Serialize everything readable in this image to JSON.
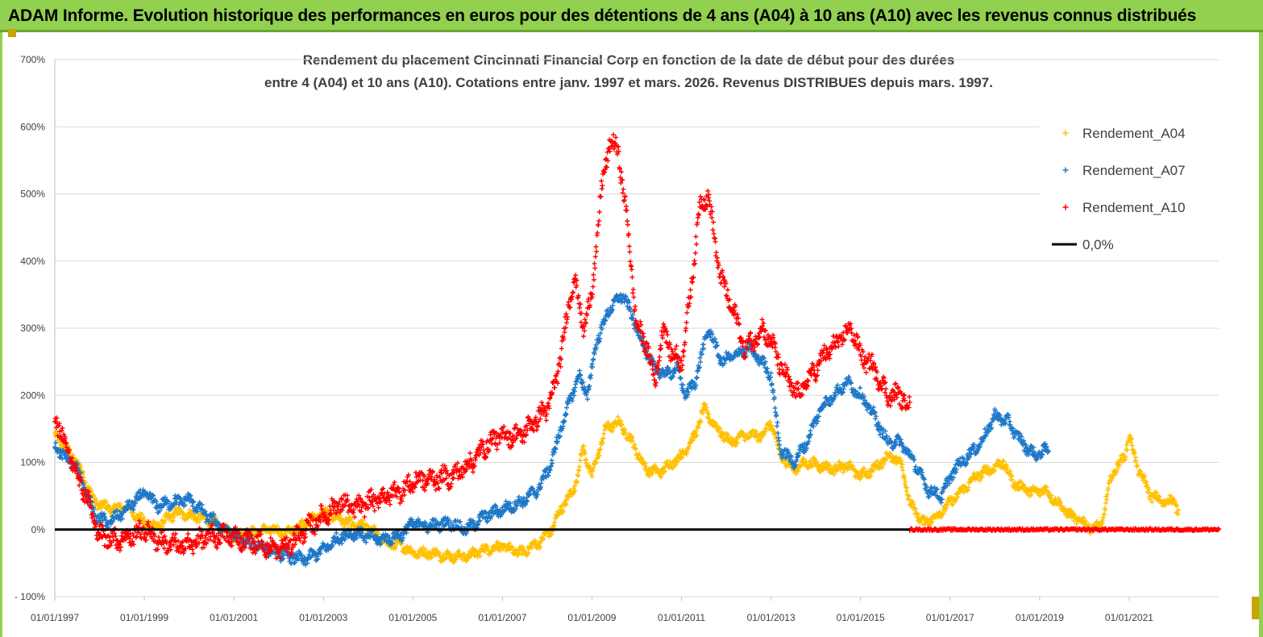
{
  "banner": {
    "title": "ADAM Informe. Evolution historique des performances en euros pour des détentions de 4 ans (A04) à 10 ans (A10) avec les revenus connus distribués"
  },
  "chart_data": {
    "type": "scatter",
    "title_lines": [
      "Rendement du placement Cincinnati Financial Corp en fonction de la date de début pour des durées",
      "entre 4 (A04) et 10 ans (A10). Cotations entre janv. 1997 et mars. 2026. Revenus DISTRIBUES depuis mars. 1997."
    ],
    "xlabel": "",
    "ylabel": "",
    "x_range": [
      "1997-01-01",
      "2023-01-01"
    ],
    "ylim": [
      -100,
      700
    ],
    "x_ticks": [
      "01/01/1997",
      "01/01/1999",
      "01/01/2001",
      "01/01/2003",
      "01/01/2005",
      "01/01/2007",
      "01/01/2009",
      "01/01/2011",
      "01/01/2013",
      "01/01/2015",
      "01/01/2017",
      "01/01/2019",
      "01/01/2021"
    ],
    "y_ticks": [
      "- 100%",
      "0%",
      "100%",
      "200%",
      "300%",
      "400%",
      "500%",
      "600%",
      "700%"
    ],
    "grid": "horizontal",
    "legend_position": "top-right",
    "series": [
      {
        "name": "Rendement_A04",
        "color": "#ffc000",
        "marker": "plus",
        "x": [
          1997.0,
          1997.5,
          1997.9,
          1998.3,
          1998.6,
          1999.0,
          1999.3,
          1999.7,
          2000.1,
          2000.4,
          2000.7,
          2001.0,
          2001.4,
          2001.8,
          2002.2,
          2002.6,
          2003.0,
          2003.4,
          2003.7,
          2004.0,
          2004.4,
          2004.8,
          2005.0,
          2005.4,
          2005.8,
          2006.2,
          2006.6,
          2007.0,
          2007.4,
          2007.8,
          2008.1,
          2008.3,
          2008.6,
          2008.8,
          2009.0,
          2009.3,
          2009.6,
          2009.9,
          2010.2,
          2010.5,
          2010.8,
          2011.0,
          2011.3,
          2011.5,
          2011.8,
          2012.1,
          2012.4,
          2012.8,
          2013.0,
          2013.2,
          2013.5,
          2013.8,
          2014.1,
          2014.4,
          2014.7,
          2015.0,
          2015.3,
          2015.6,
          2015.9,
          2016.1,
          2016.4,
          2016.7,
          2017.0,
          2017.3,
          2017.6,
          2017.9,
          2018.2,
          2018.4,
          2018.7,
          2018.9,
          2019.1,
          2019.4,
          2019.7,
          2020.0,
          2020.2,
          2020.4,
          2020.6,
          2020.9,
          2021.0,
          2021.2,
          2021.5,
          2021.8,
          2022.0,
          2022.1
        ],
        "y": [
          140,
          100,
          40,
          30,
          35,
          10,
          5,
          25,
          20,
          15,
          5,
          -10,
          -5,
          0,
          -5,
          10,
          25,
          15,
          5,
          5,
          -20,
          -25,
          -35,
          -35,
          -40,
          -40,
          -30,
          -25,
          -35,
          -20,
          0,
          30,
          60,
          120,
          80,
          150,
          160,
          130,
          90,
          85,
          100,
          110,
          140,
          180,
          150,
          130,
          140,
          140,
          160,
          110,
          90,
          100,
          95,
          90,
          95,
          80,
          90,
          110,
          100,
          40,
          10,
          20,
          40,
          60,
          80,
          90,
          100,
          70,
          60,
          55,
          60,
          40,
          20,
          10,
          0,
          10,
          80,
          110,
          140,
          90,
          50,
          40,
          45,
          25
        ],
        "spread": 6
      },
      {
        "name": "Rendement_A07",
        "color": "#1e78c8",
        "marker": "plus",
        "x": [
          1997.0,
          1997.5,
          1997.9,
          1998.2,
          1998.6,
          1999.0,
          1999.3,
          1999.6,
          2000.0,
          2000.4,
          2000.8,
          2001.1,
          2001.4,
          2001.8,
          2002.2,
          2002.6,
          2003.0,
          2003.4,
          2003.7,
          2004.0,
          2004.3,
          2004.7,
          2005.0,
          2005.4,
          2005.8,
          2006.2,
          2006.6,
          2007.0,
          2007.4,
          2007.8,
          2008.1,
          2008.3,
          2008.5,
          2008.7,
          2008.9,
          2009.1,
          2009.4,
          2009.7,
          2010.0,
          2010.3,
          2010.6,
          2010.9,
          2011.1,
          2011.3,
          2011.6,
          2011.9,
          2012.2,
          2012.5,
          2012.8,
          2013.0,
          2013.2,
          2013.5,
          2013.8,
          2014.1,
          2014.4,
          2014.7,
          2015.0,
          2015.3,
          2015.6,
          2015.9,
          2016.2,
          2016.5,
          2016.8,
          2017.1,
          2017.4,
          2017.7,
          2018.0,
          2018.3,
          2018.6,
          2018.9,
          2019.2
        ],
        "y": [
          125,
          90,
          20,
          10,
          30,
          55,
          35,
          40,
          45,
          20,
          0,
          -15,
          -20,
          -30,
          -40,
          -45,
          -30,
          -10,
          -5,
          -10,
          -15,
          -10,
          10,
          5,
          10,
          0,
          20,
          30,
          40,
          60,
          100,
          150,
          190,
          230,
          200,
          280,
          330,
          350,
          300,
          250,
          230,
          240,
          200,
          220,
          300,
          250,
          260,
          270,
          250,
          230,
          120,
          100,
          130,
          180,
          200,
          220,
          200,
          170,
          130,
          130,
          100,
          60,
          50,
          90,
          110,
          130,
          170,
          160,
          130,
          110,
          120
        ],
        "spread": 7
      },
      {
        "name": "Rendement_A10",
        "color": "#ff0000",
        "marker": "plus",
        "x": [
          1997.0,
          1997.4,
          1997.7,
          1998.0,
          1998.4,
          1998.7,
          1999.0,
          1999.4,
          1999.8,
          2000.1,
          2000.5,
          2000.9,
          2001.2,
          2001.6,
          2001.9,
          2002.2,
          2002.6,
          2003.0,
          2003.4,
          2003.7,
          2004.0,
          2004.4,
          2004.8,
          2005.1,
          2005.5,
          2005.9,
          2006.3,
          2006.7,
          2007.0,
          2007.4,
          2007.7,
          2008.0,
          2008.2,
          2008.4,
          2008.6,
          2008.8,
          2009.0,
          2009.2,
          2009.4,
          2009.6,
          2009.8,
          2010.0,
          2010.2,
          2010.4,
          2010.6,
          2010.8,
          2011.0,
          2011.2,
          2011.4,
          2011.6,
          2011.8,
          2012.0,
          2012.2,
          2012.4,
          2012.6,
          2012.8,
          2013.0,
          2013.3,
          2013.6,
          2013.9,
          2014.2,
          2014.5,
          2014.8,
          2015.0,
          2015.3,
          2015.6,
          2015.9,
          2016.1
        ],
        "y": [
          170,
          100,
          50,
          -10,
          -15,
          -10,
          0,
          -20,
          -25,
          -20,
          -10,
          -10,
          -15,
          -20,
          -30,
          -25,
          0,
          20,
          40,
          30,
          40,
          50,
          60,
          75,
          75,
          80,
          100,
          130,
          140,
          140,
          160,
          180,
          220,
          300,
          380,
          300,
          350,
          500,
          580,
          560,
          450,
          300,
          280,
          220,
          300,
          260,
          250,
          350,
          480,
          500,
          400,
          350,
          320,
          270,
          280,
          300,
          280,
          230,
          200,
          230,
          260,
          280,
          300,
          260,
          240,
          200,
          200,
          180
        ],
        "spread": 12,
        "zero_tail": [
          2016.1,
          2023.0
        ]
      },
      {
        "name": "0,0%",
        "color": "#000000",
        "marker": "line",
        "x": [
          1997.0,
          2016.1
        ],
        "y": [
          0,
          0
        ]
      }
    ]
  }
}
